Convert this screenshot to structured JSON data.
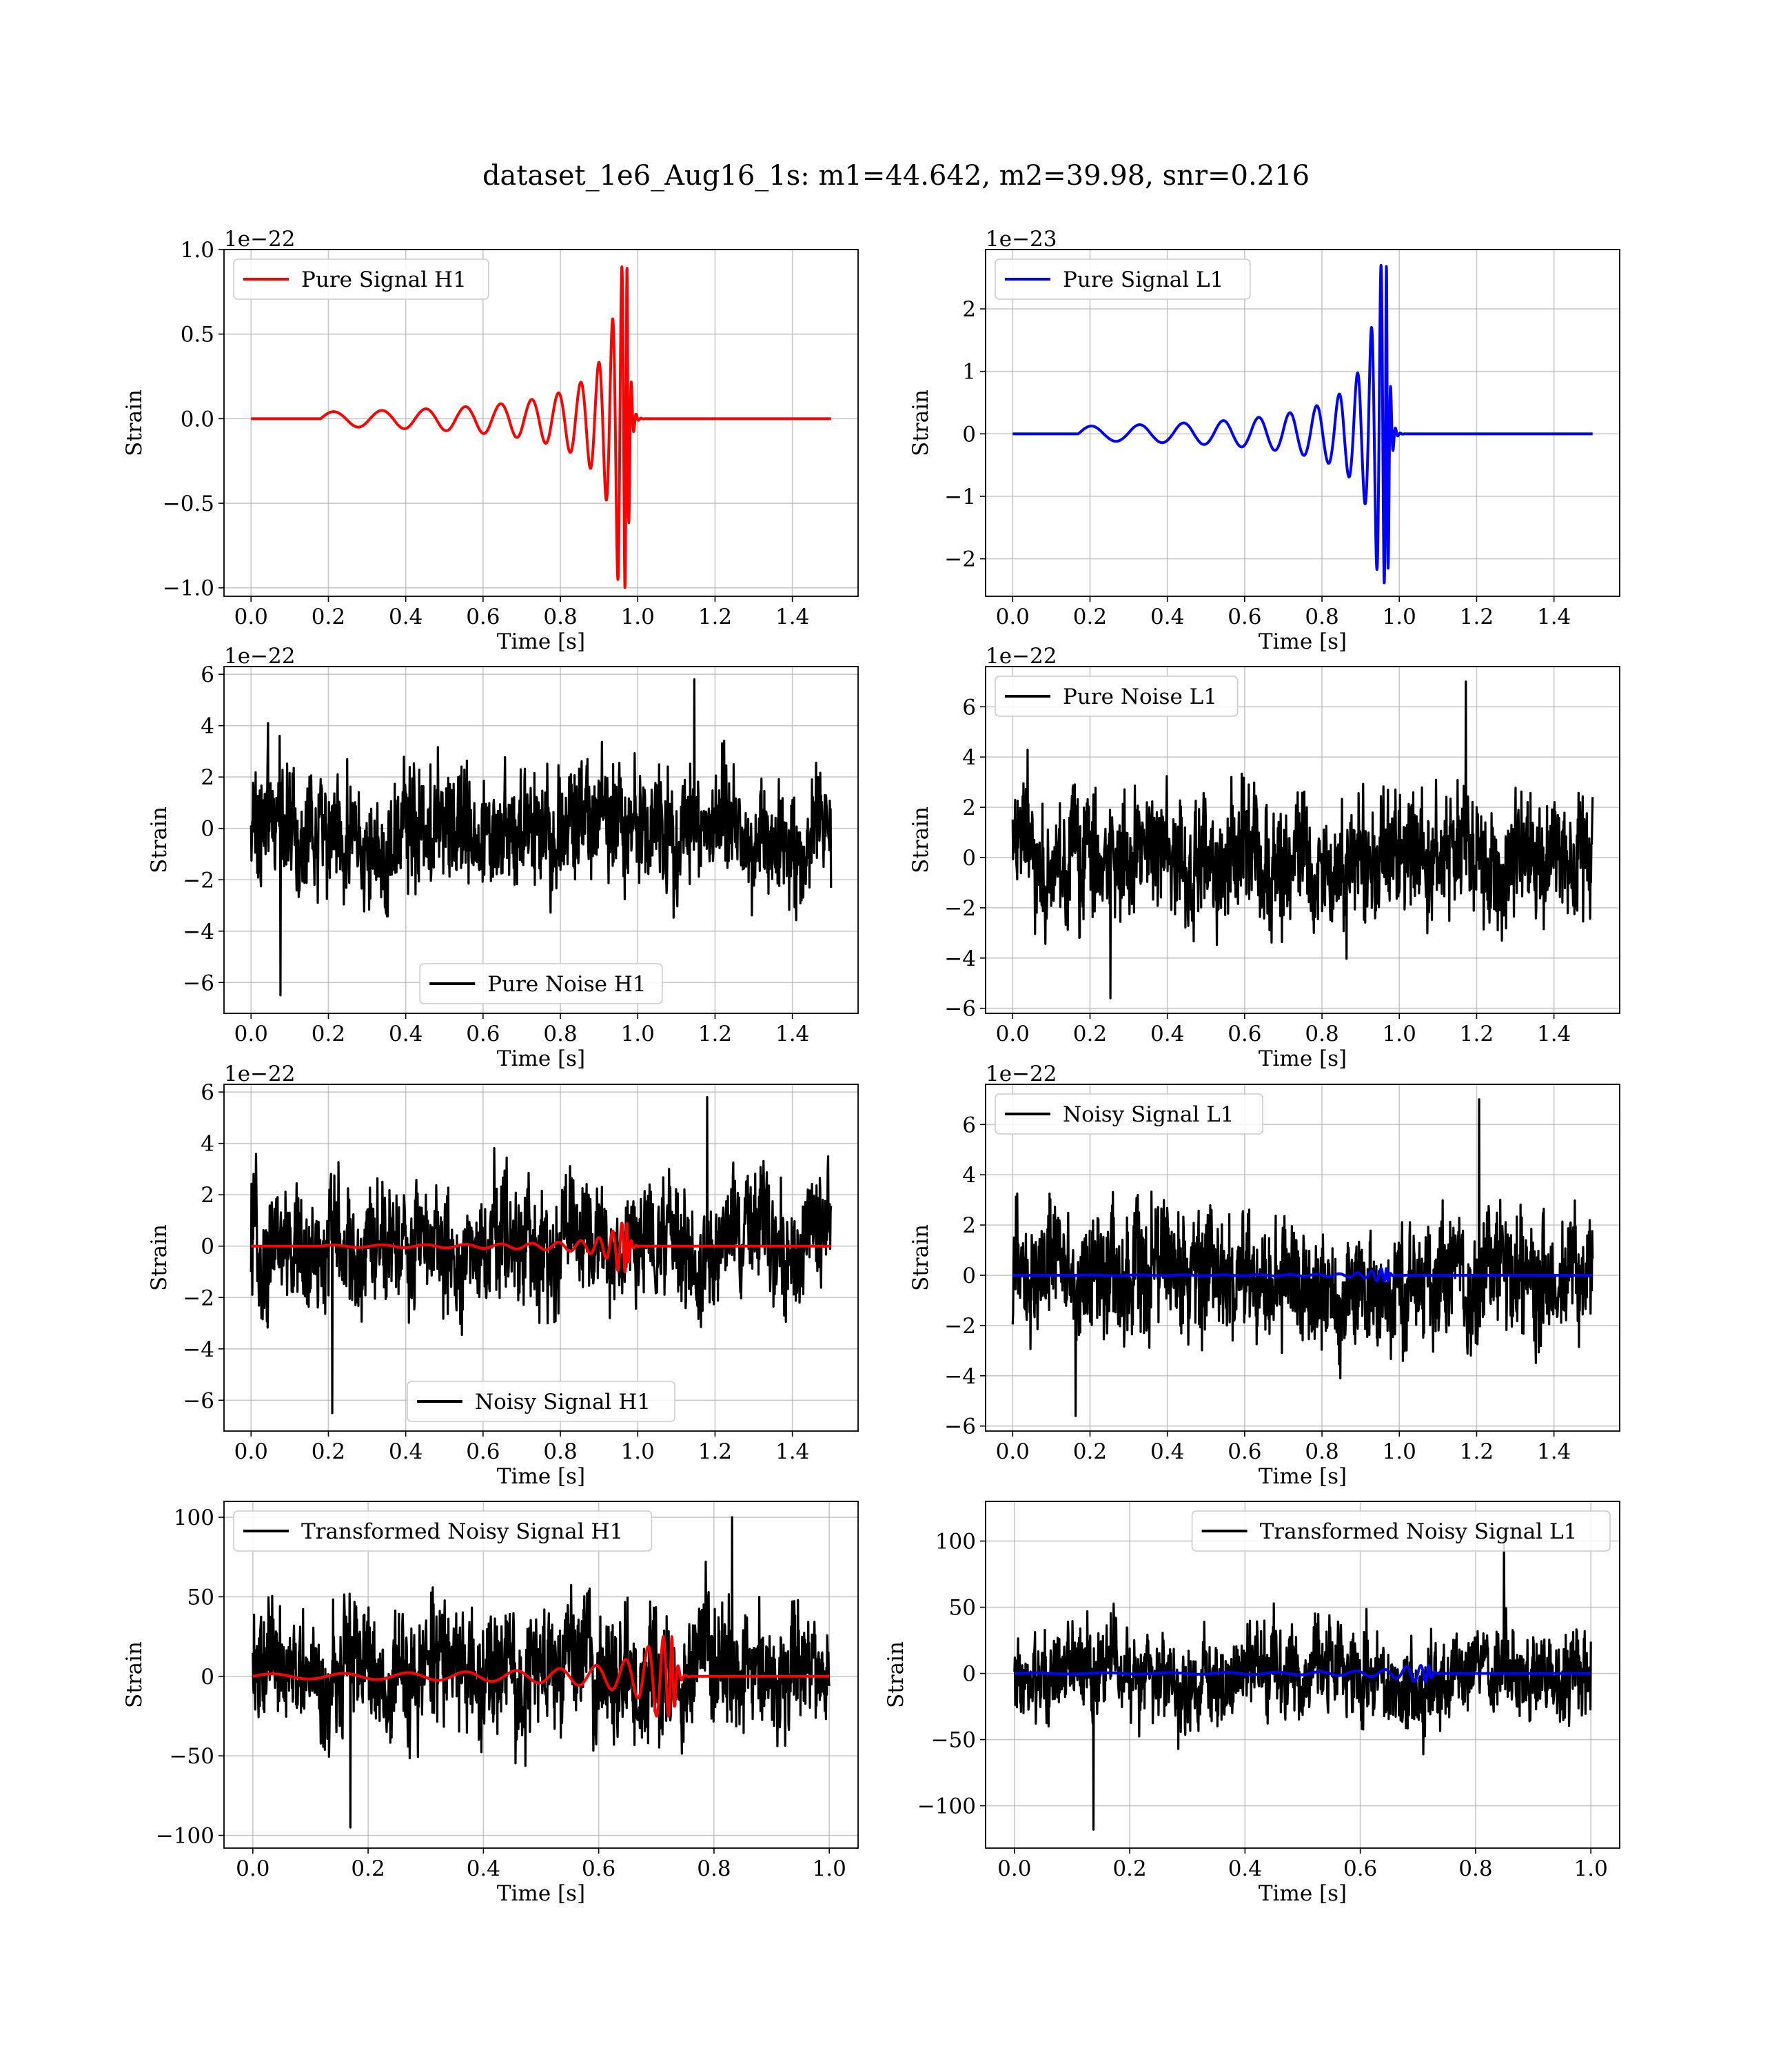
{
  "figure": {
    "suptitle": "dataset_1e6_Aug16_1s: m1=44.642, m2=39.98, snr=0.216"
  },
  "chart_data": [
    {
      "type": "line",
      "id": "pure-signal-h1",
      "xlabel": "Time [s]",
      "ylabel": "Strain",
      "offset_text": "1e−22",
      "xlim": [
        -0.07,
        1.57
      ],
      "ylim": [
        -1.05,
        1.0
      ],
      "xticks": [
        0.0,
        0.2,
        0.4,
        0.6,
        0.8,
        1.0,
        1.2,
        1.4
      ],
      "xtick_labels": [
        "0.0",
        "0.2",
        "0.4",
        "0.6",
        "0.8",
        "1.0",
        "1.2",
        "1.4"
      ],
      "yticks": [
        -1.0,
        -0.5,
        0.0,
        0.5,
        1.0
      ],
      "ytick_labels": [
        "−1.0",
        "−0.5",
        "0.0",
        "0.5",
        "1.0"
      ],
      "grid": true,
      "legend_position": "upper left",
      "series": [
        {
          "name": "Pure Signal H1",
          "color": "#ff0000",
          "kind": "chirp",
          "start": 0.18,
          "merger": 0.975,
          "end": 1.5,
          "peak": 0.9,
          "min": -1.0,
          "early_amp": 0.04
        }
      ]
    },
    {
      "type": "line",
      "id": "pure-signal-l1",
      "xlabel": "Time [s]",
      "ylabel": "Strain",
      "offset_text": "1e−23",
      "xlim": [
        -0.07,
        1.57
      ],
      "ylim": [
        -2.6,
        2.95
      ],
      "xticks": [
        0.0,
        0.2,
        0.4,
        0.6,
        0.8,
        1.0,
        1.2,
        1.4
      ],
      "xtick_labels": [
        "0.0",
        "0.2",
        "0.4",
        "0.6",
        "0.8",
        "1.0",
        "1.2",
        "1.4"
      ],
      "yticks": [
        -2,
        -1,
        0,
        1,
        2
      ],
      "ytick_labels": [
        "−2",
        "−1",
        "0",
        "1",
        "2"
      ],
      "grid": true,
      "legend_position": "upper left",
      "series": [
        {
          "name": "Pure Signal L1",
          "color": "#0000ff",
          "kind": "chirp",
          "start": 0.17,
          "merger": 0.97,
          "end": 1.5,
          "peak": 2.7,
          "min": -2.4,
          "early_amp": 0.12
        }
      ]
    },
    {
      "type": "line",
      "id": "pure-noise-h1",
      "xlabel": "Time [s]",
      "ylabel": "Strain",
      "offset_text": "1e−22",
      "xlim": [
        -0.07,
        1.57
      ],
      "ylim": [
        -7.2,
        6.3
      ],
      "xticks": [
        0.0,
        0.2,
        0.4,
        0.6,
        0.8,
        1.0,
        1.2,
        1.4
      ],
      "xtick_labels": [
        "0.0",
        "0.2",
        "0.4",
        "0.6",
        "0.8",
        "1.0",
        "1.2",
        "1.4"
      ],
      "yticks": [
        -6,
        -4,
        -2,
        0,
        2,
        4,
        6
      ],
      "ytick_labels": [
        "−6",
        "−4",
        "−2",
        "0",
        "2",
        "4",
        "6"
      ],
      "grid": true,
      "legend_position": "lower center",
      "series": [
        {
          "name": "Pure Noise H1",
          "color": "#000000",
          "kind": "noise",
          "start": 0.0,
          "end": 1.5,
          "typical_amp": 2.3,
          "max": 5.8,
          "min": -6.5
        }
      ]
    },
    {
      "type": "line",
      "id": "pure-noise-l1",
      "xlabel": "Time [s]",
      "ylabel": "Strain",
      "offset_text": "1e−22",
      "xlim": [
        -0.07,
        1.57
      ],
      "ylim": [
        -6.2,
        7.6
      ],
      "xticks": [
        0.0,
        0.2,
        0.4,
        0.6,
        0.8,
        1.0,
        1.2,
        1.4
      ],
      "xtick_labels": [
        "0.0",
        "0.2",
        "0.4",
        "0.6",
        "0.8",
        "1.0",
        "1.2",
        "1.4"
      ],
      "yticks": [
        -6,
        -4,
        -2,
        0,
        2,
        4,
        6
      ],
      "ytick_labels": [
        "−6",
        "−4",
        "−2",
        "0",
        "2",
        "4",
        "6"
      ],
      "grid": true,
      "legend_position": "upper left",
      "series": [
        {
          "name": "Pure Noise L1",
          "color": "#000000",
          "kind": "noise",
          "start": 0.0,
          "end": 1.5,
          "typical_amp": 2.5,
          "max": 7.0,
          "min": -5.6
        }
      ]
    },
    {
      "type": "line",
      "id": "noisy-signal-h1",
      "xlabel": "Time [s]",
      "ylabel": "Strain",
      "offset_text": "1e−22",
      "xlim": [
        -0.07,
        1.57
      ],
      "ylim": [
        -7.2,
        6.3
      ],
      "xticks": [
        0.0,
        0.2,
        0.4,
        0.6,
        0.8,
        1.0,
        1.2,
        1.4
      ],
      "xtick_labels": [
        "0.0",
        "0.2",
        "0.4",
        "0.6",
        "0.8",
        "1.0",
        "1.2",
        "1.4"
      ],
      "yticks": [
        -6,
        -4,
        -2,
        0,
        2,
        4,
        6
      ],
      "ytick_labels": [
        "−6",
        "−4",
        "−2",
        "0",
        "2",
        "4",
        "6"
      ],
      "grid": true,
      "legend_position": "lower center",
      "series": [
        {
          "name": "Noisy Signal H1",
          "color": "#000000",
          "kind": "noise",
          "start": 0.0,
          "end": 1.5,
          "typical_amp": 2.3,
          "max": 5.8,
          "min": -6.5
        },
        {
          "color": "#ff0000",
          "kind": "chirp",
          "start": 0.18,
          "merger": 0.975,
          "end": 1.5,
          "peak": 0.9,
          "min": -1.0,
          "early_amp": 0.04
        }
      ]
    },
    {
      "type": "line",
      "id": "noisy-signal-l1",
      "xlabel": "Time [s]",
      "ylabel": "Strain",
      "offset_text": "1e−22",
      "xlim": [
        -0.07,
        1.57
      ],
      "ylim": [
        -6.2,
        7.6
      ],
      "xticks": [
        0.0,
        0.2,
        0.4,
        0.6,
        0.8,
        1.0,
        1.2,
        1.4
      ],
      "xtick_labels": [
        "0.0",
        "0.2",
        "0.4",
        "0.6",
        "0.8",
        "1.0",
        "1.2",
        "1.4"
      ],
      "yticks": [
        -6,
        -4,
        -2,
        0,
        2,
        4,
        6
      ],
      "ytick_labels": [
        "−6",
        "−4",
        "−2",
        "0",
        "2",
        "4",
        "6"
      ],
      "grid": true,
      "legend_position": "upper left",
      "series": [
        {
          "name": "Noisy Signal L1",
          "color": "#000000",
          "kind": "noise",
          "start": 0.0,
          "end": 1.5,
          "typical_amp": 2.5,
          "max": 7.0,
          "min": -5.6
        },
        {
          "color": "#0000ff",
          "kind": "chirp",
          "start": 0.17,
          "merger": 0.97,
          "end": 1.5,
          "peak": 0.27,
          "min": -0.24,
          "early_amp": 0.012
        }
      ]
    },
    {
      "type": "line",
      "id": "transformed-noisy-signal-h1",
      "xlabel": "Time [s]",
      "ylabel": "Strain",
      "offset_text": "",
      "xlim": [
        -0.05,
        1.05
      ],
      "ylim": [
        -108,
        110
      ],
      "xticks": [
        0.0,
        0.2,
        0.4,
        0.6,
        0.8,
        1.0
      ],
      "xtick_labels": [
        "0.0",
        "0.2",
        "0.4",
        "0.6",
        "0.8",
        "1.0"
      ],
      "yticks": [
        -100,
        -50,
        0,
        50,
        100
      ],
      "ytick_labels": [
        "−100",
        "−50",
        "0",
        "50",
        "100"
      ],
      "grid": true,
      "legend_position": "upper left",
      "series": [
        {
          "name": "Transformed Noisy Signal H1",
          "color": "#000000",
          "kind": "noise",
          "start": 0.0,
          "end": 1.0,
          "typical_amp": 38,
          "max": 100,
          "min": -95
        },
        {
          "color": "#ff0000",
          "kind": "chirp",
          "start": 0.0,
          "merger": 0.73,
          "end": 1.0,
          "peak": 25,
          "min": -25,
          "early_amp": 1.5
        }
      ]
    },
    {
      "type": "line",
      "id": "transformed-noisy-signal-l1",
      "xlabel": "Time [s]",
      "ylabel": "Strain",
      "offset_text": "",
      "xlim": [
        -0.05,
        1.05
      ],
      "ylim": [
        -132,
        130
      ],
      "xticks": [
        0.0,
        0.2,
        0.4,
        0.6,
        0.8,
        1.0
      ],
      "xtick_labels": [
        "0.0",
        "0.2",
        "0.4",
        "0.6",
        "0.8",
        "1.0"
      ],
      "yticks": [
        -100,
        -50,
        0,
        50,
        100
      ],
      "ytick_labels": [
        "−100",
        "−50",
        "0",
        "50",
        "100"
      ],
      "grid": true,
      "legend_position": "upper right",
      "series": [
        {
          "name": "Transformed Noisy Signal L1",
          "color": "#000000",
          "kind": "noise",
          "start": 0.0,
          "end": 1.0,
          "typical_amp": 32,
          "max": 102,
          "min": -118
        },
        {
          "color": "#0000ff",
          "kind": "chirp",
          "start": 0.0,
          "merger": 0.72,
          "end": 1.0,
          "peak": 6,
          "min": -6,
          "early_amp": 0.4
        }
      ]
    }
  ]
}
